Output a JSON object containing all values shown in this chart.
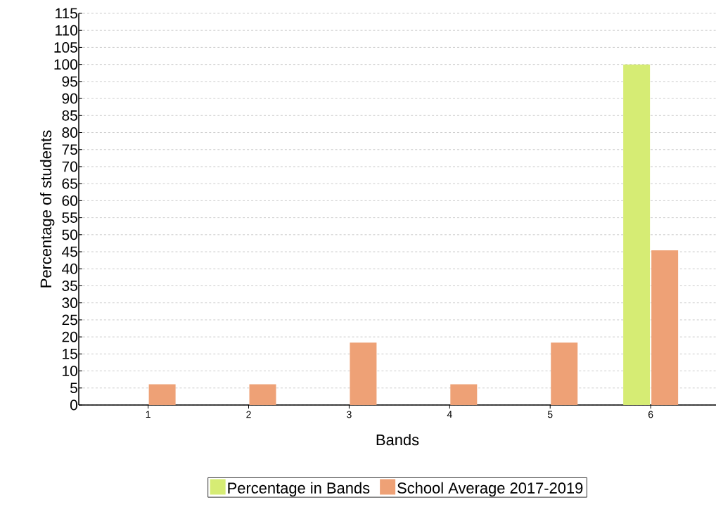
{
  "chart_data": {
    "type": "bar",
    "xlabel": "Bands",
    "ylabel": "Percentage of students",
    "categories": [
      "1",
      "2",
      "3",
      "4",
      "5",
      "6"
    ],
    "series": [
      {
        "name": "Percentage in Bands",
        "color": "#d6ec74",
        "values": [
          0,
          0,
          0,
          0,
          0,
          100
        ]
      },
      {
        "name": "School Average 2017-2019",
        "color": "#eea176",
        "values": [
          6.1,
          6.1,
          18.3,
          6.1,
          18.3,
          45.4
        ]
      }
    ],
    "ylim": [
      0,
      115
    ],
    "yticks": [
      0,
      5,
      10,
      15,
      20,
      25,
      30,
      35,
      40,
      45,
      50,
      55,
      60,
      65,
      70,
      75,
      80,
      85,
      90,
      95,
      100,
      105,
      110,
      115
    ],
    "grid": "y",
    "legend": "bottom"
  }
}
